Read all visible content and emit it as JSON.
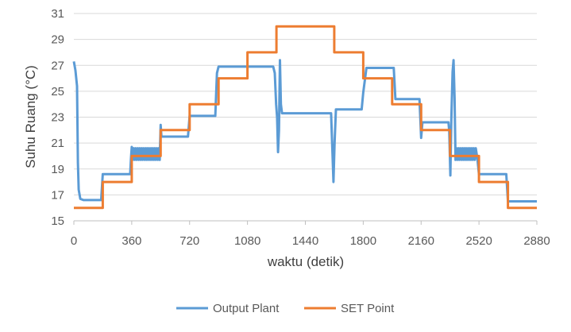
{
  "chart_data": {
    "type": "line",
    "title": "",
    "xlabel": "waktu (detik)",
    "ylabel": "Suhu Ruang (°C)",
    "xlim": [
      0,
      2880
    ],
    "ylim": [
      15,
      31
    ],
    "x_ticks": [
      "0",
      "360",
      "720",
      "1080",
      "1440",
      "1800",
      "2160",
      "2520",
      "2880"
    ],
    "y_ticks": [
      "15",
      "17",
      "19",
      "21",
      "23",
      "25",
      "27",
      "29",
      "31"
    ],
    "grid": "horizontal",
    "legend_position": "bottom",
    "series": [
      {
        "name": "Output Plant",
        "color": "#5B9BD5",
        "points": [
          [
            0,
            27.3
          ],
          [
            10,
            26.6
          ],
          [
            20,
            25.4
          ],
          [
            25,
            19.5
          ],
          [
            30,
            17.4
          ],
          [
            40,
            16.7
          ],
          [
            60,
            16.6
          ],
          [
            170,
            16.6
          ],
          [
            180,
            18.6
          ],
          [
            350,
            18.6
          ],
          [
            355,
            19.8
          ],
          [
            360,
            20.7
          ],
          [
            366,
            19.7
          ],
          [
            372,
            20.6
          ],
          [
            378,
            19.7
          ],
          [
            384,
            20.6
          ],
          [
            390,
            19.7
          ],
          [
            396,
            20.6
          ],
          [
            402,
            19.7
          ],
          [
            408,
            20.6
          ],
          [
            414,
            19.7
          ],
          [
            420,
            20.6
          ],
          [
            426,
            19.7
          ],
          [
            432,
            20.6
          ],
          [
            438,
            19.7
          ],
          [
            444,
            20.6
          ],
          [
            450,
            19.7
          ],
          [
            456,
            20.6
          ],
          [
            462,
            19.7
          ],
          [
            468,
            20.6
          ],
          [
            474,
            19.7
          ],
          [
            480,
            20.6
          ],
          [
            486,
            19.7
          ],
          [
            492,
            20.6
          ],
          [
            498,
            19.7
          ],
          [
            504,
            20.6
          ],
          [
            510,
            19.7
          ],
          [
            516,
            20.6
          ],
          [
            522,
            19.7
          ],
          [
            528,
            20.6
          ],
          [
            534,
            19.7
          ],
          [
            540,
            22.4
          ],
          [
            545,
            21.5
          ],
          [
            710,
            21.5
          ],
          [
            720,
            23.1
          ],
          [
            880,
            23.1
          ],
          [
            890,
            26.4
          ],
          [
            900,
            26.9
          ],
          [
            1240,
            26.9
          ],
          [
            1250,
            26.4
          ],
          [
            1258,
            24.0
          ],
          [
            1264,
            23.0
          ],
          [
            1270,
            20.3
          ],
          [
            1276,
            22.0
          ],
          [
            1282,
            27.4
          ],
          [
            1288,
            24.0
          ],
          [
            1295,
            23.3
          ],
          [
            1600,
            23.3
          ],
          [
            1608,
            20.5
          ],
          [
            1615,
            18.0
          ],
          [
            1622,
            21.0
          ],
          [
            1630,
            23.6
          ],
          [
            1790,
            23.6
          ],
          [
            1800,
            24.9
          ],
          [
            1820,
            26.8
          ],
          [
            1990,
            26.8
          ],
          [
            2000,
            24.4
          ],
          [
            2150,
            24.4
          ],
          [
            2160,
            21.4
          ],
          [
            2168,
            22.6
          ],
          [
            2330,
            22.6
          ],
          [
            2335,
            21.9
          ],
          [
            2342,
            18.5
          ],
          [
            2348,
            22.8
          ],
          [
            2356,
            26.5
          ],
          [
            2362,
            27.4
          ],
          [
            2368,
            24.5
          ],
          [
            2374,
            19.7
          ],
          [
            2380,
            20.6
          ],
          [
            2386,
            19.7
          ],
          [
            2392,
            20.6
          ],
          [
            2398,
            19.7
          ],
          [
            2404,
            20.6
          ],
          [
            2410,
            19.7
          ],
          [
            2416,
            20.6
          ],
          [
            2422,
            19.7
          ],
          [
            2428,
            20.6
          ],
          [
            2434,
            19.7
          ],
          [
            2440,
            20.6
          ],
          [
            2446,
            19.7
          ],
          [
            2452,
            20.6
          ],
          [
            2458,
            19.7
          ],
          [
            2464,
            20.6
          ],
          [
            2470,
            19.7
          ],
          [
            2476,
            20.6
          ],
          [
            2482,
            19.7
          ],
          [
            2488,
            20.6
          ],
          [
            2494,
            19.7
          ],
          [
            2500,
            20.6
          ],
          [
            2510,
            19.8
          ],
          [
            2520,
            18.6
          ],
          [
            2690,
            18.6
          ],
          [
            2700,
            16.5
          ],
          [
            2880,
            16.5
          ]
        ]
      },
      {
        "name": "SET Point",
        "color": "#ED7D31",
        "points": [
          [
            0,
            16
          ],
          [
            180,
            16
          ],
          [
            180,
            18
          ],
          [
            360,
            18
          ],
          [
            360,
            20
          ],
          [
            540,
            20
          ],
          [
            540,
            22
          ],
          [
            720,
            22
          ],
          [
            720,
            24
          ],
          [
            900,
            24
          ],
          [
            900,
            26
          ],
          [
            1080,
            26
          ],
          [
            1080,
            28
          ],
          [
            1260,
            28
          ],
          [
            1260,
            30
          ],
          [
            1620,
            30
          ],
          [
            1620,
            28
          ],
          [
            1800,
            28
          ],
          [
            1800,
            26
          ],
          [
            1980,
            26
          ],
          [
            1980,
            24
          ],
          [
            2160,
            24
          ],
          [
            2160,
            22
          ],
          [
            2340,
            22
          ],
          [
            2340,
            20
          ],
          [
            2520,
            20
          ],
          [
            2520,
            18
          ],
          [
            2700,
            18
          ],
          [
            2700,
            16
          ],
          [
            2880,
            16
          ]
        ]
      }
    ]
  }
}
